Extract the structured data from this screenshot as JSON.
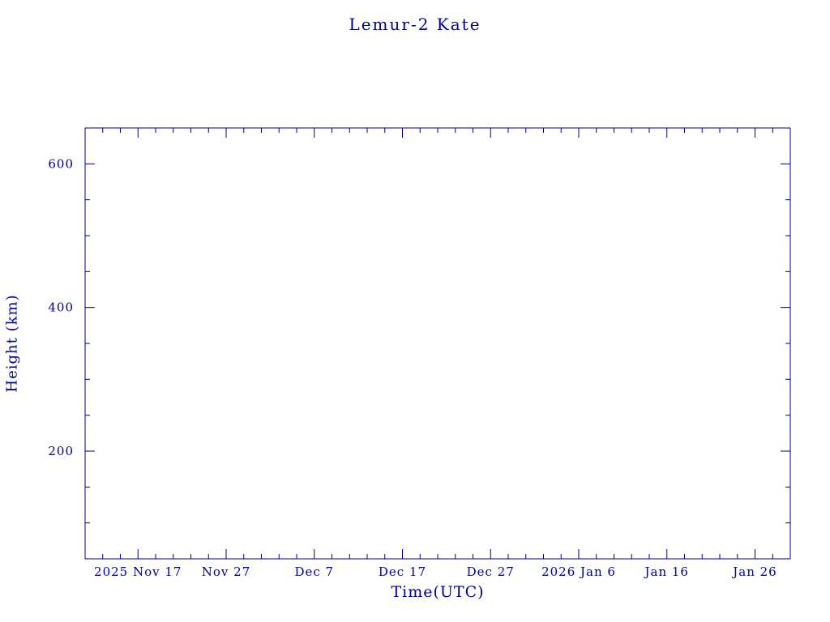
{
  "chart_data": {
    "type": "line",
    "title": "Lemur-2 Kate",
    "xlabel": "Time(UTC)",
    "ylabel": "Height (km)",
    "axis_color": "#00008b",
    "grid": false,
    "legend": null,
    "x_domain_days": [
      0,
      80
    ],
    "x_major_ticks": [
      {
        "day": 6,
        "label": "2025 Nov 17"
      },
      {
        "day": 16,
        "label": "Nov 27"
      },
      {
        "day": 26,
        "label": "Dec 7"
      },
      {
        "day": 36,
        "label": "Dec 17"
      },
      {
        "day": 46,
        "label": "Dec 27"
      },
      {
        "day": 56,
        "label": "2026 Jan 6"
      },
      {
        "day": 66,
        "label": "Jan 16"
      },
      {
        "day": 76,
        "label": "Jan 26"
      }
    ],
    "x_minor_step_days": 2,
    "ylim": [
      50,
      650
    ],
    "y_major_ticks": [
      200,
      400,
      600
    ],
    "y_minor_step": 50,
    "series": []
  }
}
